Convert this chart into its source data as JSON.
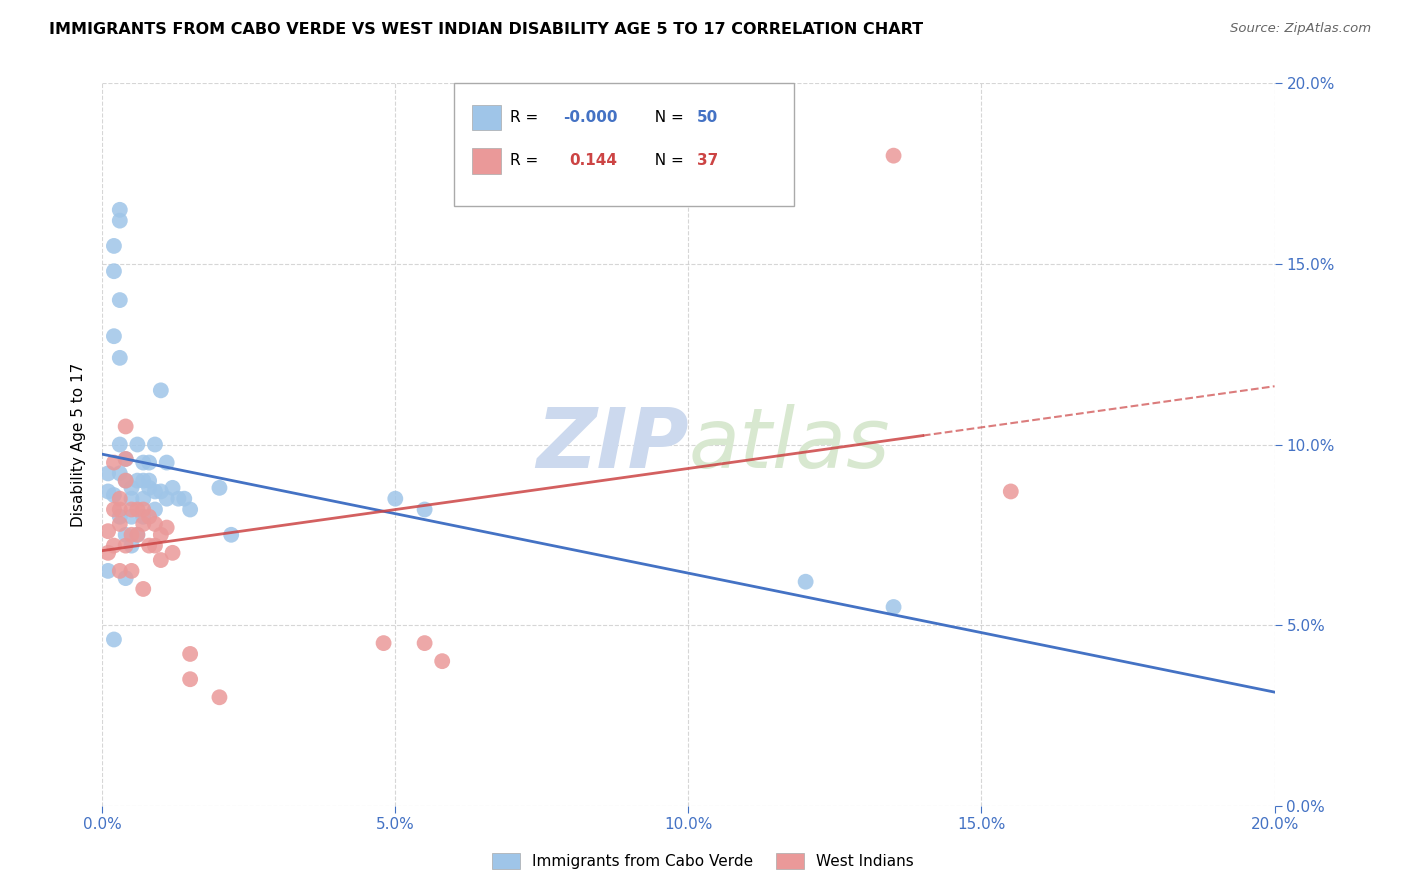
{
  "title": "IMMIGRANTS FROM CABO VERDE VS WEST INDIAN DISABILITY AGE 5 TO 17 CORRELATION CHART",
  "source": "Source: ZipAtlas.com",
  "ylabel": "Disability Age 5 to 17",
  "xlim": [
    0.0,
    0.2
  ],
  "ylim": [
    0.0,
    0.2
  ],
  "cabo_verde_color": "#9fc5e8",
  "west_indian_color": "#ea9999",
  "cabo_verde_R": "-0.000",
  "cabo_verde_N": 50,
  "west_indian_R": "0.144",
  "west_indian_N": 37,
  "cabo_verde_x": [
    0.001,
    0.001,
    0.001,
    0.002,
    0.002,
    0.002,
    0.002,
    0.002,
    0.003,
    0.003,
    0.003,
    0.003,
    0.003,
    0.003,
    0.003,
    0.004,
    0.004,
    0.004,
    0.004,
    0.005,
    0.005,
    0.005,
    0.005,
    0.006,
    0.006,
    0.006,
    0.007,
    0.007,
    0.007,
    0.007,
    0.008,
    0.008,
    0.008,
    0.009,
    0.009,
    0.009,
    0.01,
    0.01,
    0.011,
    0.011,
    0.012,
    0.013,
    0.014,
    0.015,
    0.02,
    0.022,
    0.05,
    0.055,
    0.12,
    0.135
  ],
  "cabo_verde_y": [
    0.092,
    0.087,
    0.065,
    0.155,
    0.148,
    0.13,
    0.086,
    0.046,
    0.165,
    0.162,
    0.14,
    0.124,
    0.1,
    0.092,
    0.08,
    0.096,
    0.09,
    0.075,
    0.063,
    0.088,
    0.085,
    0.08,
    0.072,
    0.1,
    0.09,
    0.075,
    0.095,
    0.09,
    0.085,
    0.08,
    0.095,
    0.09,
    0.088,
    0.1,
    0.087,
    0.082,
    0.115,
    0.087,
    0.095,
    0.085,
    0.088,
    0.085,
    0.085,
    0.082,
    0.088,
    0.075,
    0.085,
    0.082,
    0.062,
    0.055
  ],
  "west_indian_x": [
    0.001,
    0.001,
    0.002,
    0.002,
    0.002,
    0.003,
    0.003,
    0.003,
    0.003,
    0.004,
    0.004,
    0.004,
    0.004,
    0.005,
    0.005,
    0.005,
    0.006,
    0.006,
    0.007,
    0.007,
    0.007,
    0.008,
    0.008,
    0.009,
    0.009,
    0.01,
    0.01,
    0.011,
    0.012,
    0.015,
    0.015,
    0.02,
    0.048,
    0.055,
    0.058,
    0.135,
    0.155
  ],
  "west_indian_y": [
    0.076,
    0.07,
    0.095,
    0.082,
    0.072,
    0.085,
    0.082,
    0.078,
    0.065,
    0.105,
    0.096,
    0.09,
    0.072,
    0.082,
    0.075,
    0.065,
    0.082,
    0.075,
    0.082,
    0.078,
    0.06,
    0.08,
    0.072,
    0.078,
    0.072,
    0.075,
    0.068,
    0.077,
    0.07,
    0.042,
    0.035,
    0.03,
    0.045,
    0.045,
    0.04,
    0.18,
    0.087
  ],
  "background_color": "#ffffff",
  "grid_color": "#cccccc",
  "trend_cabo_color": "#4472c4",
  "trend_west_color": "#cc4444",
  "watermark_color": "#ccd9ee"
}
